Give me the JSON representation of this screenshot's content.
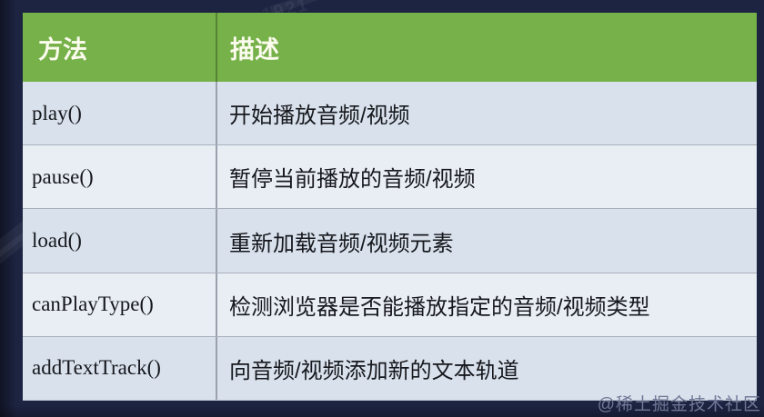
{
  "colors": {
    "page_bg": "#1d2442",
    "header_bg": "#77b14a",
    "header_text": "#fbfbee",
    "row_odd": "#d9e1ec",
    "row_even": "#e9eef5",
    "row_border": "#a9b0bc",
    "divider": "#9aa1ad",
    "cell_text": "#16181d",
    "credit_text": "#6e7795"
  },
  "watermarks": {
    "pattern_text": "1921",
    "credit": "@稀土掘金技术社区"
  },
  "table": {
    "columns": [
      {
        "label": "方法"
      },
      {
        "label": "描述"
      }
    ],
    "rows": [
      {
        "method": "play()",
        "description": "开始播放音频/视频"
      },
      {
        "method": "pause()",
        "description": "暂停当前播放的音频/视频"
      },
      {
        "method": "load()",
        "description": "重新加载音频/视频元素"
      },
      {
        "method": "canPlayType()",
        "description": "检测浏览器是否能播放指定的音频/视频类型"
      },
      {
        "method": "addTextTrack()",
        "description": "向音频/视频添加新的文本轨道"
      }
    ]
  }
}
